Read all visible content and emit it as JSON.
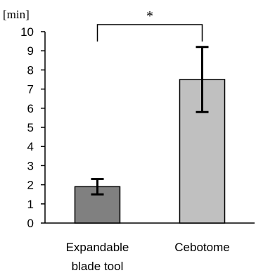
{
  "chart_data": {
    "type": "bar",
    "unit_label": "[min]",
    "categories": [
      [
        "Expandable",
        "blade tool"
      ],
      [
        "Cebotome"
      ]
    ],
    "values": [
      1.9,
      7.5
    ],
    "error_low": [
      1.5,
      5.8
    ],
    "error_high": [
      2.3,
      9.2
    ],
    "bar_colors": [
      "#808080",
      "#c0c0c0"
    ],
    "ylim": [
      0,
      10
    ],
    "yticks": [
      0,
      1,
      2,
      3,
      4,
      5,
      6,
      7,
      8,
      9,
      10
    ],
    "significance": {
      "between": [
        0,
        1
      ],
      "label": "*"
    },
    "grid": false
  }
}
